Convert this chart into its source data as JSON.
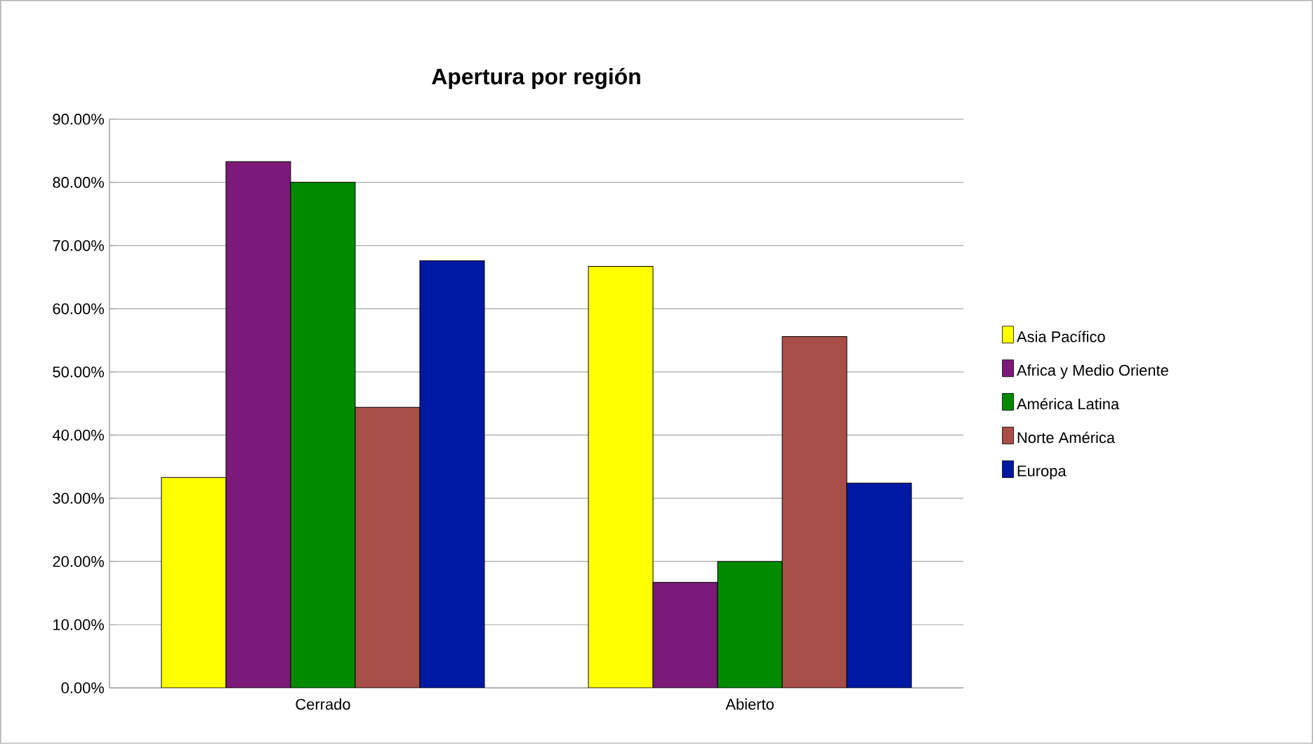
{
  "chart_data": {
    "type": "bar",
    "title": "Apertura por región",
    "categories": [
      "Cerrado",
      "Abierto"
    ],
    "series": [
      {
        "name": "Asia Pacífico",
        "color": "#ffff00",
        "values": [
          33.3,
          66.7
        ]
      },
      {
        "name": "Africa y Medio Oriente",
        "color": "#7b1a78",
        "values": [
          83.3,
          16.7
        ]
      },
      {
        "name": "América Latina",
        "color": "#008a00",
        "values": [
          80.0,
          20.0
        ]
      },
      {
        "name": "Norte América",
        "color": "#a84e48",
        "values": [
          44.4,
          55.6
        ]
      },
      {
        "name": "Europa",
        "color": "#0019a3",
        "values": [
          67.6,
          32.4
        ]
      }
    ],
    "ylim": [
      0,
      90
    ],
    "yticks": [
      {
        "value": 0,
        "label": "0.00%"
      },
      {
        "value": 10,
        "label": "10.00%"
      },
      {
        "value": 20,
        "label": "20.00%"
      },
      {
        "value": 30,
        "label": "30.00%"
      },
      {
        "value": 40,
        "label": "40.00%"
      },
      {
        "value": 50,
        "label": "50.00%"
      },
      {
        "value": 60,
        "label": "60.00%"
      },
      {
        "value": 70,
        "label": "70.00%"
      },
      {
        "value": 80,
        "label": "80.00%"
      },
      {
        "value": 90,
        "label": "90.00%"
      }
    ],
    "grid": "y",
    "legend": "right"
  }
}
